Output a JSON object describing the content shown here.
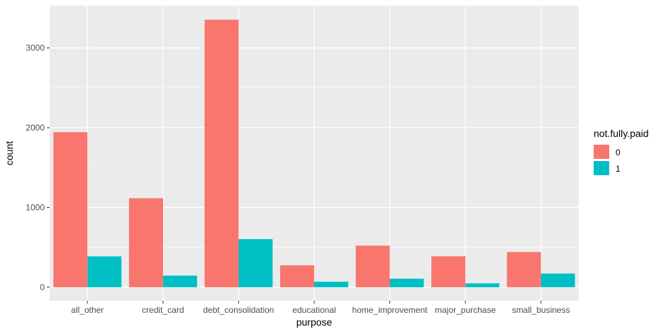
{
  "chart_data": {
    "type": "bar",
    "title": "",
    "xlabel": "purpose",
    "ylabel": "count",
    "categories": [
      "all_other",
      "credit_card",
      "debt_consolidation",
      "educational",
      "home_improvement",
      "major_purchase",
      "small_business"
    ],
    "series": [
      {
        "name": "0",
        "color": "#F8766D",
        "values": [
          1944,
          1116,
          3354,
          274,
          522,
          388,
          441
        ]
      },
      {
        "name": "1",
        "color": "#00BFC4",
        "values": [
          387,
          146,
          603,
          69,
          107,
          49,
          172
        ]
      }
    ],
    "legend_title": "not.fully.paid",
    "legend_position": "right",
    "ylim": [
      -170,
      3530
    ],
    "yticks": [
      0,
      1000,
      2000,
      3000
    ],
    "ytick_labels": [
      "0",
      "1000",
      "2000",
      "3000"
    ],
    "grid": true,
    "panel_background": "#EBEBEB",
    "grid_color": "#FFFFFF"
  }
}
